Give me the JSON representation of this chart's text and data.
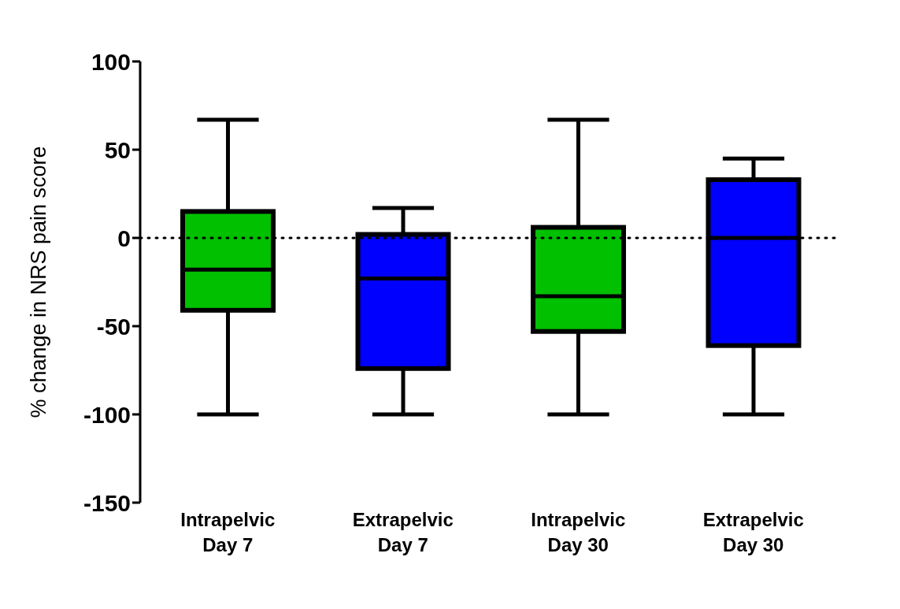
{
  "chart_data": {
    "type": "box",
    "ylabel": "% change in NRS pain score",
    "categories": [
      "Intrapelvic Day 7",
      "Extrapelvic Day 7",
      "Intrapelvic Day 30",
      "Extrapelvic Day 30"
    ],
    "colors": [
      "#00c000",
      "#0000ff",
      "#00c000",
      "#0000ff"
    ],
    "boxes": [
      {
        "low": -100,
        "q1": -41,
        "median": -18,
        "q3": 15,
        "high": 67
      },
      {
        "low": -100,
        "q1": -74,
        "median": -23,
        "q3": 2,
        "high": 17
      },
      {
        "low": -100,
        "q1": -53,
        "median": -33,
        "q3": 6,
        "high": 67
      },
      {
        "low": -100,
        "q1": -61,
        "median": 0,
        "q3": 33,
        "high": 45
      }
    ],
    "ylim": [
      -150,
      100
    ],
    "yticks": [
      100,
      50,
      0,
      -50,
      -100,
      -150
    ],
    "ref_lines": [
      {
        "axis": "y",
        "value": 0,
        "color": "#000000",
        "line_style": "dotted"
      }
    ],
    "grid": false
  }
}
